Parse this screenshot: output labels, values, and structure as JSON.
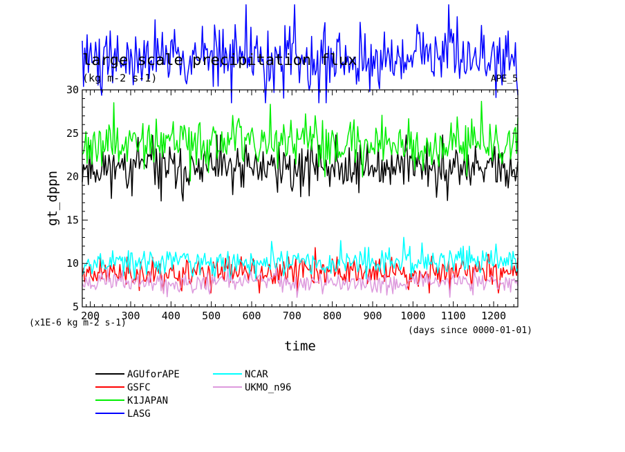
{
  "chart_data": {
    "type": "line",
    "title": "large scale precipitation flux",
    "units": "(kg m-2 s-1)",
    "corner_label": "APE_5",
    "xlabel": "time",
    "ylabel": "gt_dppn",
    "x_units_note": "(days since 0000-01-01)",
    "y_scale_note": "(x1E-6 kg m-2 s-1)",
    "xlim": [
      180,
      1260
    ],
    "ylim": [
      5,
      30
    ],
    "x_ticks": [
      200,
      300,
      400,
      500,
      600,
      700,
      800,
      900,
      1000,
      1100,
      1200
    ],
    "y_ticks": [
      5,
      10,
      15,
      20,
      25,
      30
    ],
    "grid": false,
    "legend_position": "bottom-left",
    "series": [
      {
        "name": "AGUforAPE",
        "color": "#000000",
        "x_start": 180,
        "x_end": 1260,
        "mean": 21.0,
        "spread": 1.6,
        "min": 17.2,
        "max": 24.8,
        "samples": 360,
        "seed": 11
      },
      {
        "name": "GSFC",
        "color": "#ff0000",
        "x_start": 180,
        "x_end": 1260,
        "mean": 9.0,
        "spread": 1.0,
        "min": 6.6,
        "max": 13.6,
        "samples": 360,
        "seed": 23
      },
      {
        "name": "K1JAPAN",
        "color": "#00ee00",
        "x_start": 180,
        "x_end": 1260,
        "mean": 23.8,
        "spread": 1.7,
        "min": 19.5,
        "max": 29.9,
        "samples": 360,
        "seed": 37
      },
      {
        "name": "LASG",
        "color": "#0000ff",
        "x_start": 180,
        "x_end": 1260,
        "mean": 33.6,
        "spread": 2.0,
        "min": 28.5,
        "max": 39.8,
        "samples": 360,
        "seed": 41
      },
      {
        "name": "NCAR",
        "color": "#00ffff",
        "x_start": 180,
        "x_end": 1260,
        "mean": 10.2,
        "spread": 0.9,
        "min": 8.0,
        "max": 13.4,
        "samples": 360,
        "seed": 53
      },
      {
        "name": "UKMO_n96",
        "color": "#dd99dd",
        "x_start": 180,
        "x_end": 1260,
        "mean": 7.9,
        "spread": 0.6,
        "min": 6.1,
        "max": 9.6,
        "samples": 360,
        "seed": 67
      }
    ]
  }
}
